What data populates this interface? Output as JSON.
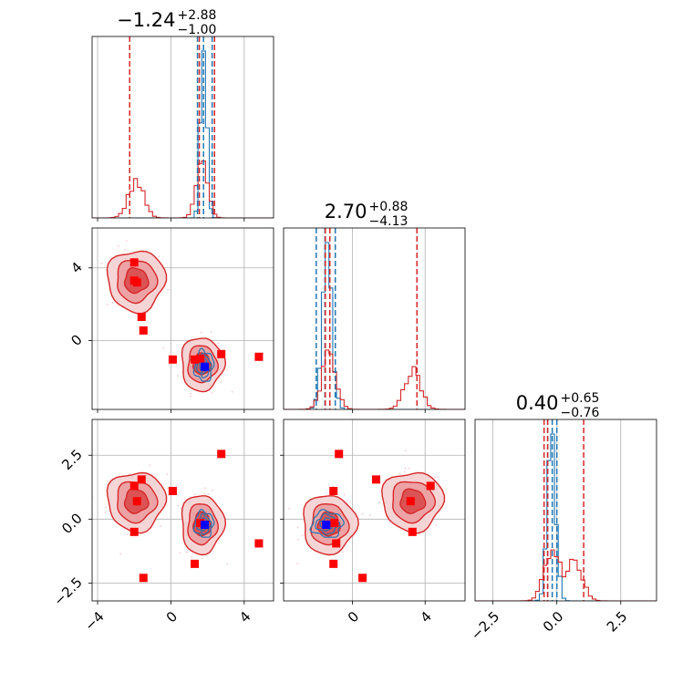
{
  "chart_data": {
    "type": "corner",
    "colors": {
      "red": "#d62728",
      "blue": "#1f77b4",
      "marker_red": "#ff0000",
      "marker_blue": "#0000ff"
    },
    "ranges": [
      [
        -4.3,
        5.6
      ],
      [
        -3.8,
        6.2
      ],
      [
        -3.2,
        3.9
      ]
    ],
    "titles": [
      {
        "main": "−1.24",
        "sup": "+2.88",
        "sub": "−1.00"
      },
      {
        "main": "2.70",
        "sup": "+0.88",
        "sub": "−4.13"
      },
      {
        "main": "0.40",
        "sup": "+0.65",
        "sub": "−0.76"
      }
    ],
    "ticks": [
      {
        "values": [
          -4,
          0,
          4
        ],
        "labels": [
          "−4",
          "0",
          "4"
        ]
      },
      {
        "values": [
          0,
          4
        ],
        "labels": [
          "0",
          "4"
        ]
      },
      {
        "values": [
          -2.5,
          0.0,
          2.5
        ],
        "labels": [
          "−2.5",
          "0.0",
          "2.5"
        ]
      }
    ],
    "quantiles": {
      "red": [
        [
          -2.25,
          1.55,
          2.38
        ],
        [
          -1.5,
          -1.25,
          3.55
        ],
        [
          -0.5,
          -0.36,
          1.05
        ]
      ],
      "blue": [
        [
          1.45,
          1.78,
          2.25
        ],
        [
          -2.0,
          -1.52,
          -0.95
        ],
        [
          -0.36,
          -0.18,
          0.0
        ]
      ]
    },
    "markers": {
      "red": [
        [
          -2.0,
          4.3,
          1.3
        ],
        [
          -1.85,
          3.2,
          0.7
        ],
        [
          -1.6,
          1.3,
          1.55
        ],
        [
          -1.5,
          0.55,
          -2.3
        ],
        [
          0.1,
          -1.05,
          1.1
        ],
        [
          1.3,
          -1.05,
          -1.75
        ],
        [
          2.75,
          -0.75,
          2.55
        ],
        [
          4.8,
          -0.9,
          -0.95
        ],
        [
          -2.0,
          3.3,
          -0.5
        ],
        [
          1.6,
          -1.0,
          -0.15
        ]
      ],
      "blue": [
        [
          1.85,
          -1.45,
          -0.22
        ]
      ]
    },
    "clusters": {
      "red": [
        {
          "center": [
            -1.9,
            3.3,
            0.7
          ],
          "spread": [
            0.75,
            0.8,
            0.55
          ],
          "weight": 0.45
        },
        {
          "center": [
            1.7,
            -1.3,
            -0.2
          ],
          "spread": [
            0.55,
            0.7,
            0.55
          ],
          "weight": 0.55
        }
      ],
      "blue": [
        {
          "center": [
            1.8,
            -1.4,
            -0.2
          ],
          "spread": [
            0.3,
            0.5,
            0.3
          ],
          "weight": 1.0
        }
      ]
    }
  }
}
